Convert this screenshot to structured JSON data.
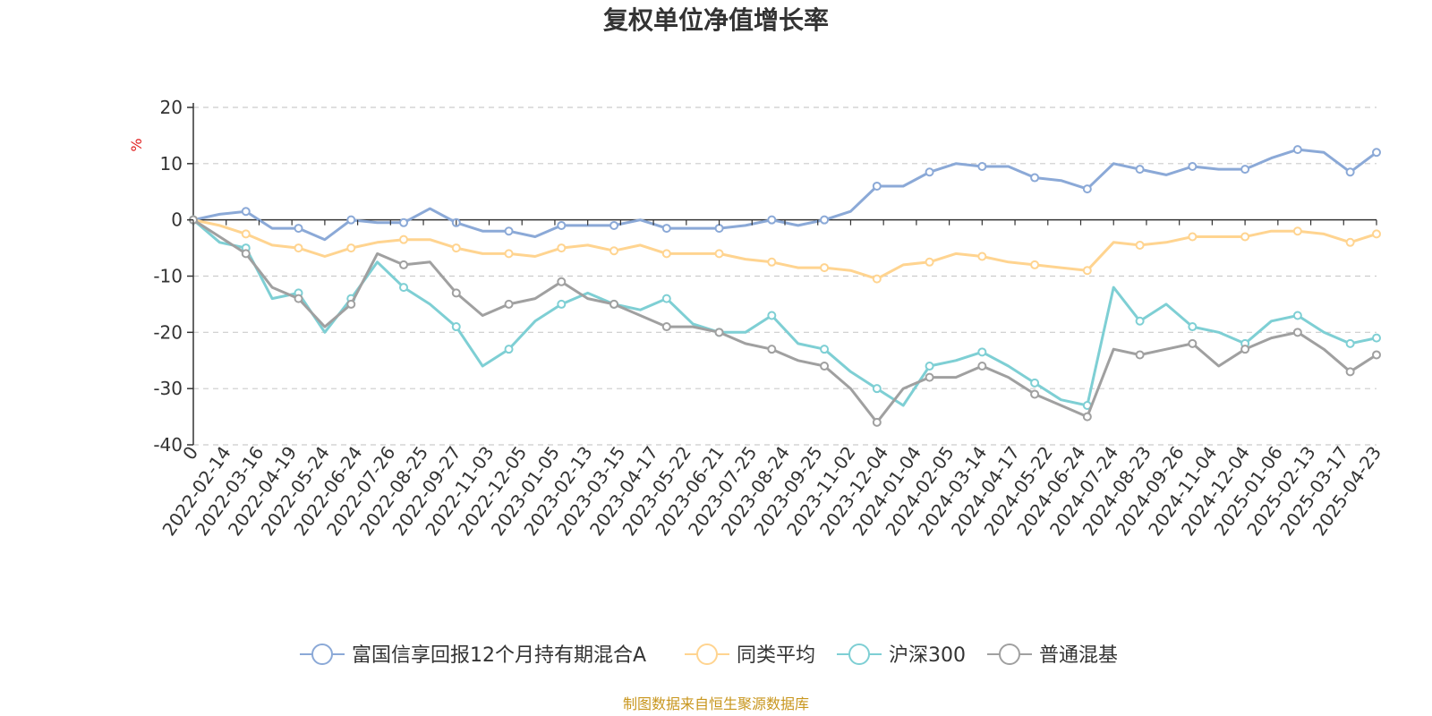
{
  "chart_data": {
    "type": "line",
    "title": "复权单位净值增长率",
    "ylabel": "%",
    "xlabel": "",
    "ylim": [
      -40,
      20
    ],
    "yticks": [
      "20",
      "10",
      "0",
      "-10",
      "-20",
      "-30",
      "-40"
    ],
    "grid": true,
    "legend_position": "bottom",
    "x_ticks": [
      "0",
      "2022-02-14",
      "2022-03-16",
      "2022-04-19",
      "2022-05-24",
      "2022-06-24",
      "2022-07-26",
      "2022-08-25",
      "2022-09-27",
      "2022-11-03",
      "2022-12-05",
      "2023-01-05",
      "2023-02-13",
      "2023-03-15",
      "2023-04-17",
      "2023-05-22",
      "2023-06-21",
      "2023-07-25",
      "2023-08-24",
      "2023-09-25",
      "2023-11-02",
      "2023-12-04",
      "2024-01-04",
      "2024-02-05",
      "2024-03-14",
      "2024-04-17",
      "2024-05-22",
      "2024-06-24",
      "2024-07-24",
      "2024-08-23",
      "2024-09-26",
      "2024-11-04",
      "2024-12-04",
      "2025-01-06",
      "2025-02-13",
      "2025-03-17",
      "2025-04-23"
    ],
    "series": [
      {
        "name": "富国信享回报12个月持有期混合A",
        "color": "#8ba9d7",
        "values": [
          0,
          1,
          1.5,
          -1.5,
          -1.5,
          -3.5,
          0,
          -0.5,
          -0.5,
          2,
          -0.5,
          -2,
          -2,
          -3,
          -1,
          -1,
          -1,
          0,
          -1.5,
          -1.5,
          -1.5,
          -1,
          0,
          -1,
          0,
          1.5,
          6,
          6,
          8.5,
          10,
          9.5,
          9.5,
          7.5,
          7,
          5.5,
          10,
          9,
          8,
          9.5,
          9,
          9,
          11,
          12.5,
          12,
          8.5,
          12
        ]
      },
      {
        "name": "同类平均",
        "color": "#ffd490",
        "values": [
          0,
          -1,
          -2.5,
          -4.5,
          -5,
          -6.5,
          -5,
          -4,
          -3.5,
          -3.5,
          -5,
          -6,
          -6,
          -6.5,
          -5,
          -4.5,
          -5.5,
          -4.5,
          -6,
          -6,
          -6,
          -7,
          -7.5,
          -8.5,
          -8.5,
          -9,
          -10.5,
          -8,
          -7.5,
          -6,
          -6.5,
          -7.5,
          -8,
          -8.5,
          -9,
          -4,
          -4.5,
          -4,
          -3,
          -3,
          -3,
          -2,
          -2,
          -2.5,
          -4,
          -2.5
        ]
      },
      {
        "name": "沪深300",
        "color": "#7ecfd4",
        "values": [
          0,
          -4,
          -5,
          -14,
          -13,
          -20,
          -14,
          -7.5,
          -12,
          -15,
          -19,
          -26,
          -23,
          -18,
          -15,
          -13,
          -15,
          -16,
          -14,
          -18.5,
          -20,
          -20,
          -17,
          -22,
          -23,
          -27,
          -30,
          -33,
          -26,
          -25,
          -23.5,
          -26,
          -29,
          -32,
          -33,
          -12,
          -18,
          -15,
          -19,
          -20,
          -22,
          -18,
          -17,
          -20,
          -22,
          -21
        ]
      },
      {
        "name": "普通混基",
        "color": "#a0a0a0",
        "values": [
          0,
          -3,
          -6,
          -12,
          -14,
          -19,
          -15,
          -6,
          -8,
          -7.5,
          -13,
          -17,
          -15,
          -14,
          -11,
          -14,
          -15,
          -17,
          -19,
          -19,
          -20,
          -22,
          -23,
          -25,
          -26,
          -30,
          -36,
          -30,
          -28,
          -28,
          -26,
          -28,
          -31,
          -33,
          -35,
          -23,
          -24,
          -23,
          -22,
          -26,
          -23,
          -21,
          -20,
          -23,
          -27,
          -24
        ]
      }
    ],
    "source_note": "制图数据来自恒生聚源数据库"
  }
}
